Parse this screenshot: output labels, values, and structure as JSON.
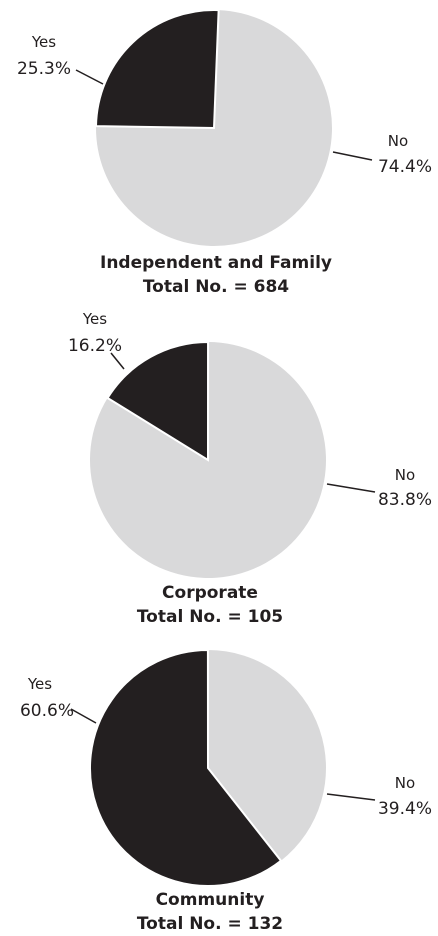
{
  "chart_data": [
    {
      "type": "pie",
      "title": "Independent and Family",
      "subtitle": "Total No. = 684",
      "slices": [
        {
          "label": "Yes",
          "value": 25.3,
          "display": "25.3%",
          "color": "#231f20"
        },
        {
          "label": "No",
          "value": 74.4,
          "display": "74.4%",
          "color": "#d9d9da"
        }
      ]
    },
    {
      "type": "pie",
      "title": "Corporate",
      "subtitle": "Total No. = 105",
      "slices": [
        {
          "label": "Yes",
          "value": 16.2,
          "display": "16.2%",
          "color": "#231f20"
        },
        {
          "label": "No",
          "value": 83.8,
          "display": "83.8%",
          "color": "#d9d9da"
        }
      ]
    },
    {
      "type": "pie",
      "title": "Community",
      "subtitle": "Total No. = 132",
      "slices": [
        {
          "label": "Yes",
          "value": 60.6,
          "display": "60.6%",
          "color": "#231f20"
        },
        {
          "label": "No",
          "value": 39.4,
          "display": "39.4%",
          "color": "#d9d9da"
        }
      ]
    }
  ]
}
